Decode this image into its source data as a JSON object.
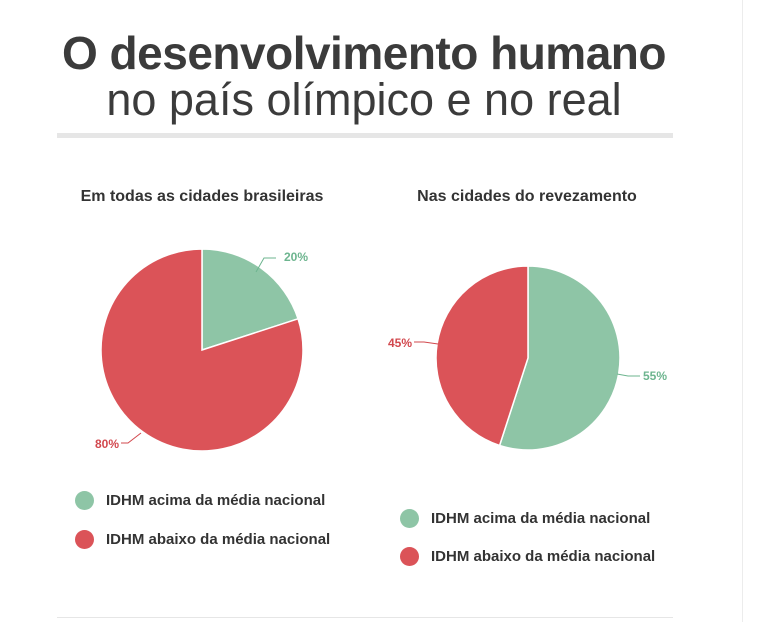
{
  "header": {
    "title_line1": "O desenvolvimento humano",
    "title_line2": "no país olímpico e no real"
  },
  "colors": {
    "above": "#8ec5a6",
    "below": "#db5358",
    "label_green": "#6db58f",
    "label_red": "#d2484e"
  },
  "chart_data": [
    {
      "type": "pie",
      "title": "Em todas as cidades brasileiras",
      "categories": [
        "IDHM acima da média nacional",
        "IDHM abaixo da média nacional"
      ],
      "values": [
        20,
        80
      ],
      "value_labels": [
        "20%",
        "80%"
      ],
      "legend_position": "bottom"
    },
    {
      "type": "pie",
      "title": "Nas cidades do revezamento",
      "categories": [
        "IDHM acima da média nacional",
        "IDHM abaixo da média nacional"
      ],
      "values": [
        55,
        45
      ],
      "value_labels": [
        "55%",
        "45%"
      ],
      "legend_position": "bottom"
    }
  ]
}
